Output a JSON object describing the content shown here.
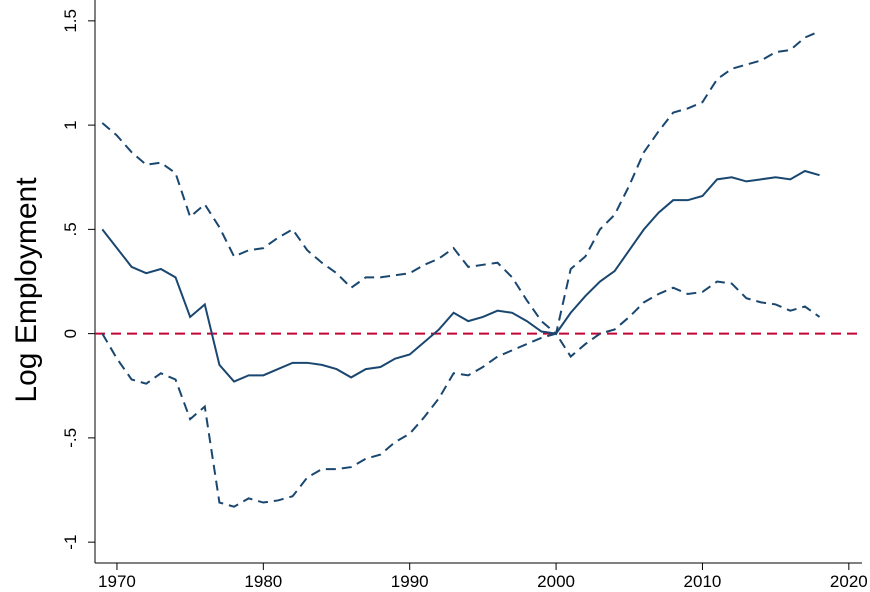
{
  "chart_data": {
    "type": "line",
    "y_label": "Log Employment",
    "x": [
      1969,
      1970,
      1971,
      1972,
      1973,
      1974,
      1975,
      1976,
      1977,
      1978,
      1979,
      1980,
      1981,
      1982,
      1983,
      1984,
      1985,
      1986,
      1987,
      1988,
      1989,
      1990,
      1991,
      1992,
      1993,
      1994,
      1995,
      1996,
      1997,
      1998,
      1999,
      2000,
      2001,
      2002,
      2003,
      2004,
      2005,
      2006,
      2007,
      2008,
      2009,
      2010,
      2011,
      2012,
      2013,
      2014,
      2015,
      2016,
      2017,
      2018
    ],
    "series": [
      {
        "color": "#1a476f",
        "dash": false,
        "values": [
          0.5,
          0.41,
          0.32,
          0.29,
          0.31,
          0.27,
          0.08,
          0.14,
          -0.15,
          -0.23,
          -0.2,
          -0.2,
          -0.17,
          -0.14,
          -0.14,
          -0.15,
          -0.17,
          -0.21,
          -0.17,
          -0.16,
          -0.12,
          -0.1,
          -0.04,
          0.02,
          0.1,
          0.06,
          0.08,
          0.11,
          0.1,
          0.06,
          0.01,
          0,
          0.1,
          0.18,
          0.25,
          0.3,
          0.4,
          0.5,
          0.58,
          0.64,
          0.64,
          0.66,
          0.74,
          0.75,
          0.73,
          0.74,
          0.75,
          0.74,
          0.78,
          0.76
        ]
      },
      {
        "color": "#1a476f",
        "dash": true,
        "values": [
          1.01,
          0.95,
          0.87,
          0.81,
          0.82,
          0.77,
          0.56,
          0.62,
          0.51,
          0.37,
          0.4,
          0.41,
          0.46,
          0.5,
          0.4,
          0.34,
          0.29,
          0.22,
          0.27,
          0.27,
          0.28,
          0.29,
          0.33,
          0.36,
          0.41,
          0.32,
          0.33,
          0.34,
          0.27,
          0.16,
          0.06,
          0,
          0.31,
          0.37,
          0.5,
          0.57,
          0.71,
          0.87,
          0.97,
          1.06,
          1.08,
          1.11,
          1.22,
          1.27,
          1.29,
          1.31,
          1.35,
          1.36,
          1.42,
          1.45
        ]
      },
      {
        "color": "#1a476f",
        "dash": true,
        "values": [
          0,
          -0.12,
          -0.22,
          -0.24,
          -0.19,
          -0.22,
          -0.41,
          -0.35,
          -0.81,
          -0.83,
          -0.79,
          -0.81,
          -0.8,
          -0.78,
          -0.69,
          -0.65,
          -0.65,
          -0.64,
          -0.6,
          -0.58,
          -0.52,
          -0.48,
          -0.4,
          -0.31,
          -0.19,
          -0.2,
          -0.16,
          -0.11,
          -0.08,
          -0.05,
          -0.02,
          0,
          -0.11,
          -0.05,
          0,
          0.02,
          0.08,
          0.15,
          0.19,
          0.22,
          0.19,
          0.2,
          0.25,
          0.24,
          0.17,
          0.15,
          0.14,
          0.11,
          0.13,
          0.08
        ]
      }
    ],
    "reference_line": {
      "y": 0,
      "color": "#c10534",
      "dash": true
    },
    "xlim": [
      1968.5,
      2020.9
    ],
    "xticks": [
      1970,
      1980,
      1990,
      2000,
      2010,
      2020
    ],
    "ylim": [
      -1.1,
      1.6
    ],
    "yticks": [
      -1,
      {
        "value": -0.5,
        "label": "-.5"
      },
      0,
      {
        "value": 0.5,
        "label": ".5"
      },
      1,
      1.5
    ]
  }
}
